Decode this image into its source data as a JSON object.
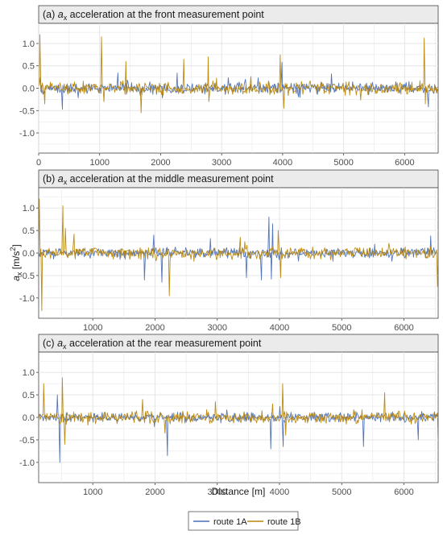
{
  "figure": {
    "y_axis_label": "a",
    "y_axis_label_sub": "x",
    "y_axis_label_unit": " [m/s",
    "y_axis_label_sup": "2",
    "y_axis_label_close": "]",
    "x_axis_label": "Distance [m]"
  },
  "legend": {
    "position": "bottom-center",
    "items": [
      {
        "label": "route 1A",
        "color": "#4a6fb5"
      },
      {
        "label": "route 1B",
        "color": "#b8860b"
      }
    ]
  },
  "chart_data": [
    {
      "type": "line",
      "panel_prefix": "(a) ",
      "title_symbol": "a",
      "title_sub": "x",
      "title_rest": " acceleration at the front measurement point",
      "xlim": [
        0,
        6550
      ],
      "ylim": [
        -1.45,
        1.45
      ],
      "x_ticks": [
        0,
        1000,
        2000,
        3000,
        4000,
        5000,
        6000
      ],
      "y_ticks": [
        1.0,
        0.5,
        0.0,
        -0.5,
        -1.0
      ],
      "x_ticks_text": [
        "0",
        "1000",
        "2000",
        "3000",
        "4000",
        "5000",
        "6000"
      ],
      "y_ticks_text": [
        "1.0",
        "0.5",
        "0.0",
        "-0.5",
        "-1.0"
      ],
      "grid": true,
      "series": [
        {
          "name": "route 1A",
          "color": "#4a6fb5",
          "noise_amplitude": 0.12,
          "x": [
            30,
            390,
            1300,
            2270,
            3390,
            3990,
            4800,
            6390
          ],
          "y": [
            0.24,
            -0.47,
            0.34,
            0.34,
            0.2,
            0.58,
            0.32,
            -0.42
          ]
        },
        {
          "name": "route 1B",
          "color": "#b8860b",
          "noise_amplitude": 0.13,
          "x": [
            20,
            100,
            1030,
            1070,
            1430,
            1680,
            2380,
            2780,
            2790,
            3960,
            4020,
            6320,
            6340
          ],
          "y": [
            1.2,
            -0.35,
            1.15,
            -0.3,
            0.6,
            -0.55,
            0.65,
            0.7,
            -0.3,
            0.75,
            -0.45,
            1.12,
            -0.35
          ]
        }
      ]
    },
    {
      "type": "line",
      "panel_prefix": "(b) ",
      "title_symbol": "a",
      "title_sub": "x",
      "title_rest": " acceleration at the middle measurement point",
      "xlim": [
        130,
        6550
      ],
      "ylim": [
        -1.45,
        1.45
      ],
      "x_ticks": [
        1000,
        2000,
        3000,
        4000,
        5000,
        6000
      ],
      "y_ticks": [
        1.0,
        0.5,
        0.0,
        -0.5,
        -1.0
      ],
      "x_ticks_text": [
        "1000",
        "2000",
        "3000",
        "4000",
        "5000",
        "6000"
      ],
      "y_ticks_text": [
        "1.0",
        "0.5",
        "0.0",
        "-0.5",
        "-1.0"
      ],
      "grid": true,
      "series": [
        {
          "name": "route 1A",
          "color": "#4a6fb5",
          "noise_amplitude": 0.1,
          "x": [
            1830,
            1980,
            2110,
            2890,
            3470,
            3710,
            3830,
            3870,
            3890,
            6430
          ],
          "y": [
            -0.6,
            0.4,
            -0.65,
            0.32,
            -0.55,
            -0.6,
            0.8,
            -0.58,
            0.65,
            0.38
          ]
        },
        {
          "name": "route 1B",
          "color": "#b8860b",
          "noise_amplitude": 0.12,
          "x": [
            140,
            180,
            520,
            560,
            700,
            2230,
            3370,
            3980,
            4020,
            6540
          ],
          "y": [
            1.2,
            -1.28,
            1.05,
            0.55,
            0.42,
            -0.95,
            0.35,
            0.5,
            -0.55,
            -0.75
          ]
        }
      ]
    },
    {
      "type": "line",
      "panel_prefix": "(c) ",
      "title_symbol": "a",
      "title_sub": "x",
      "title_rest": " acceleration at the rear measurement point",
      "xlim": [
        130,
        6550
      ],
      "ylim": [
        -1.45,
        1.45
      ],
      "x_ticks": [
        1000,
        2000,
        3000,
        4000,
        5000,
        6000
      ],
      "y_ticks": [
        1.0,
        0.5,
        0.0,
        -0.5,
        -1.0
      ],
      "x_ticks_text": [
        "1000",
        "2000",
        "3000",
        "4000",
        "5000",
        "6000"
      ],
      "y_ticks_text": [
        "1.0",
        "0.5",
        "0.0",
        "-0.5",
        "-1.0"
      ],
      "grid": true,
      "series": [
        {
          "name": "route 1A",
          "color": "#4a6fb5",
          "noise_amplitude": 0.1,
          "x": [
            430,
            470,
            2200,
            3860,
            4060,
            5350,
            6230
          ],
          "y": [
            0.5,
            -1.0,
            -0.85,
            -0.7,
            -0.65,
            -0.65,
            -0.5
          ]
        },
        {
          "name": "route 1B",
          "color": "#b8860b",
          "noise_amplitude": 0.12,
          "x": [
            210,
            510,
            550,
            1800,
            2160,
            2970,
            3890,
            4050,
            4100,
            5690,
            6550
          ],
          "y": [
            0.75,
            0.88,
            -0.6,
            0.4,
            -0.35,
            0.35,
            0.3,
            0.75,
            -0.4,
            0.55,
            -0.5
          ]
        }
      ]
    }
  ]
}
